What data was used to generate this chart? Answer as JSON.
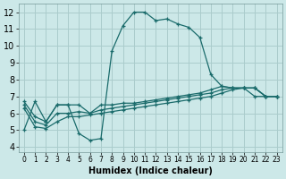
{
  "title": "",
  "xlabel": "Humidex (Indice chaleur)",
  "ylabel": "",
  "bg_color": "#cce8e8",
  "grid_color": "#aacccc",
  "line_color": "#1a6b6b",
  "xlim": [
    -0.5,
    23.5
  ],
  "ylim": [
    3.7,
    12.5
  ],
  "xticks": [
    0,
    1,
    2,
    3,
    4,
    5,
    6,
    7,
    8,
    9,
    10,
    11,
    12,
    13,
    14,
    15,
    16,
    17,
    18,
    19,
    20,
    21,
    22,
    23
  ],
  "yticks": [
    4,
    5,
    6,
    7,
    8,
    9,
    10,
    11,
    12
  ],
  "lines": [
    {
      "x": [
        0,
        1,
        2,
        3,
        4,
        5,
        6,
        7,
        8,
        9,
        10,
        11,
        12,
        13,
        14,
        15,
        16,
        17,
        18,
        19,
        20,
        21,
        22,
        23
      ],
      "y": [
        5.0,
        6.7,
        5.5,
        6.5,
        6.5,
        4.8,
        4.4,
        4.5,
        9.7,
        11.2,
        12.0,
        12.0,
        11.5,
        11.6,
        11.3,
        11.1,
        10.5,
        8.3,
        7.6,
        7.5,
        7.5,
        7.0,
        7.0,
        7.0
      ]
    },
    {
      "x": [
        0,
        1,
        2,
        3,
        4,
        5,
        6,
        7,
        8,
        9,
        10,
        11,
        12,
        13,
        14,
        15,
        16,
        17,
        18,
        19,
        20,
        21,
        22,
        23
      ],
      "y": [
        6.7,
        5.8,
        5.5,
        6.5,
        6.5,
        6.5,
        6.0,
        6.5,
        6.5,
        6.6,
        6.6,
        6.7,
        6.8,
        6.9,
        7.0,
        7.1,
        7.2,
        7.4,
        7.6,
        7.5,
        7.5,
        7.5,
        7.0,
        7.0
      ]
    },
    {
      "x": [
        0,
        1,
        2,
        3,
        4,
        5,
        6,
        7,
        8,
        9,
        10,
        11,
        12,
        13,
        14,
        15,
        16,
        17,
        18,
        19,
        20,
        21,
        22,
        23
      ],
      "y": [
        6.5,
        5.5,
        5.3,
        6.0,
        6.0,
        6.1,
        6.0,
        6.2,
        6.3,
        6.4,
        6.5,
        6.6,
        6.7,
        6.8,
        6.9,
        7.0,
        7.1,
        7.2,
        7.4,
        7.5,
        7.5,
        7.5,
        7.0,
        7.0
      ]
    },
    {
      "x": [
        0,
        1,
        2,
        3,
        4,
        5,
        6,
        7,
        8,
        9,
        10,
        11,
        12,
        13,
        14,
        15,
        16,
        17,
        18,
        19,
        20,
        21,
        22,
        23
      ],
      "y": [
        6.3,
        5.2,
        5.1,
        5.5,
        5.8,
        5.8,
        5.9,
        6.0,
        6.1,
        6.2,
        6.3,
        6.4,
        6.5,
        6.6,
        6.7,
        6.8,
        6.9,
        7.0,
        7.2,
        7.4,
        7.5,
        7.5,
        7.0,
        7.0
      ]
    }
  ]
}
